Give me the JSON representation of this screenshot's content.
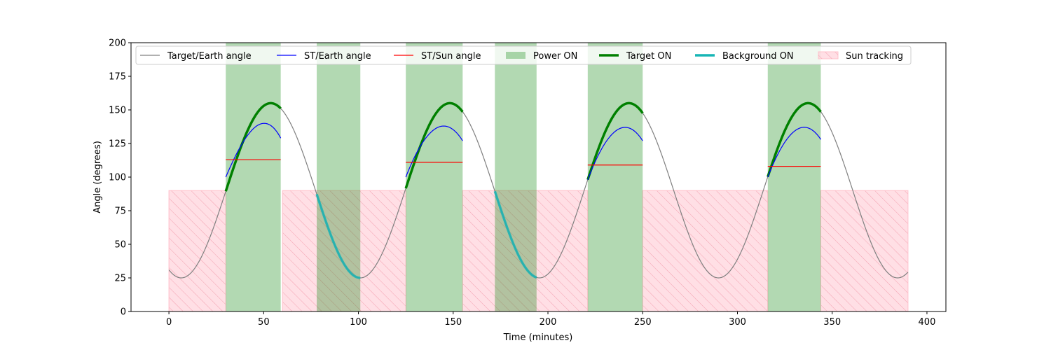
{
  "chart_data": {
    "type": "line",
    "title": "",
    "xlabel": "Time (minutes)",
    "ylabel": "Angle (degrees)",
    "xlim": [
      -20,
      410
    ],
    "ylim": [
      0,
      200
    ],
    "x_ticks": [
      0,
      50,
      100,
      150,
      200,
      250,
      300,
      350,
      400
    ],
    "y_ticks": [
      0,
      25,
      50,
      75,
      100,
      125,
      150,
      175,
      200
    ],
    "grid": false,
    "legend_placement": "top",
    "colors": {
      "target_earth": "#808080",
      "st_earth": "#0000ff",
      "st_sun": "#ff0000",
      "power_on": "#008000",
      "target_on": "#008000",
      "background_on": "#17b5b5",
      "sun_tracking": "#ffc0cb"
    },
    "legend": [
      {
        "label": "Target/Earth angle",
        "kind": "line",
        "key": "target_earth"
      },
      {
        "label": "ST/Earth angle",
        "kind": "line",
        "key": "st_earth"
      },
      {
        "label": "ST/Sun angle",
        "kind": "line",
        "key": "st_sun"
      },
      {
        "label": "Power ON",
        "kind": "patch",
        "key": "power_on"
      },
      {
        "label": "Target ON",
        "kind": "thick",
        "key": "target_on"
      },
      {
        "label": "Background ON",
        "kind": "thick",
        "key": "background_on"
      },
      {
        "label": "Sun tracking",
        "kind": "hatch",
        "key": "sun_tracking"
      }
    ],
    "target_earth_angle": {
      "x_start": 0,
      "x_end": 390,
      "period_min": 94.5,
      "min_deg": 25,
      "max_deg": 155,
      "min_at_min": 6.5
    },
    "power_on_intervals": [
      [
        30,
        59
      ],
      [
        78,
        101
      ],
      [
        125,
        155
      ],
      [
        172,
        194
      ],
      [
        221,
        250
      ],
      [
        316,
        344
      ]
    ],
    "sun_tracking_intervals": [
      [
        0,
        30
      ],
      [
        60,
        125
      ],
      [
        155,
        221
      ],
      [
        250,
        316
      ],
      [
        344,
        390
      ]
    ],
    "sun_tracking_level_deg": 90,
    "target_on_intervals": [
      [
        30,
        59
      ],
      [
        125,
        155
      ],
      [
        221,
        250
      ],
      [
        316,
        344
      ]
    ],
    "background_on_intervals": [
      [
        78,
        101
      ],
      [
        172,
        194
      ]
    ],
    "st_earth_series": [
      {
        "x": [
          30,
          40,
          50,
          59
        ],
        "y": [
          100,
          128,
          140,
          129
        ]
      },
      {
        "x": [
          125,
          135,
          145,
          155
        ],
        "y": [
          100,
          128,
          138,
          127
        ]
      },
      {
        "x": [
          221,
          231,
          241,
          250
        ],
        "y": [
          98,
          127,
          137,
          127
        ]
      },
      {
        "x": [
          316,
          326,
          336,
          344
        ],
        "y": [
          100,
          128,
          137,
          128
        ]
      }
    ],
    "st_sun_series": [
      {
        "x": [
          30,
          59
        ],
        "y": [
          113,
          113
        ]
      },
      {
        "x": [
          125,
          155
        ],
        "y": [
          111,
          111
        ]
      },
      {
        "x": [
          221,
          250
        ],
        "y": [
          109,
          109
        ]
      },
      {
        "x": [
          316,
          344
        ],
        "y": [
          108,
          108
        ]
      }
    ]
  }
}
